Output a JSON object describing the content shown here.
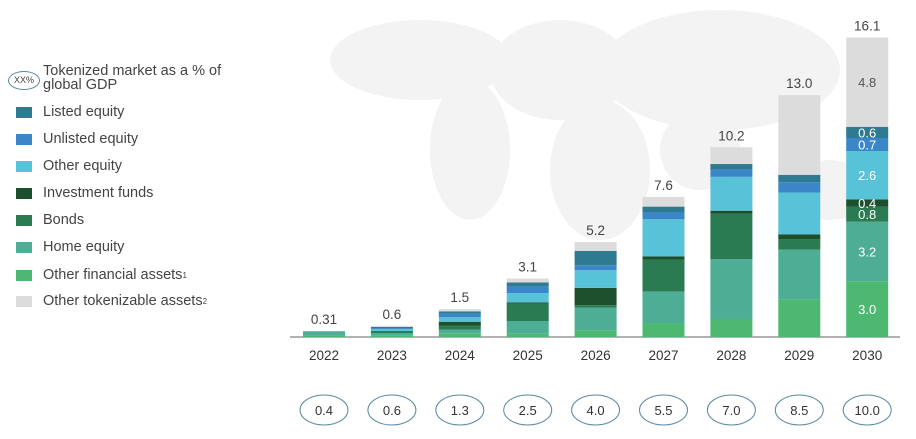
{
  "chart_data": {
    "type": "bar",
    "stacked": true,
    "categories": [
      "2022",
      "2023",
      "2024",
      "2025",
      "2026",
      "2027",
      "2028",
      "2029",
      "2030"
    ],
    "totals": [
      "0.31",
      "0.6",
      "1.5",
      "3.1",
      "5.2",
      "7.6",
      "10.2",
      "13.0",
      "16.1"
    ],
    "series": [
      {
        "name": "Other financial assets",
        "footnote": "1",
        "color": "#4cb870",
        "values": [
          0.06,
          0.1,
          0.2,
          0.18,
          0.36,
          0.75,
          0.94,
          2.0,
          3.0
        ]
      },
      {
        "name": "Home equity",
        "color": "#4dae95",
        "values": [
          0.25,
          0.1,
          0.2,
          0.68,
          1.22,
          1.7,
          3.24,
          2.7,
          3.2
        ]
      },
      {
        "name": "Bonds",
        "color": "#2a7a52",
        "values": [
          0,
          0.08,
          0.2,
          0.93,
          0.13,
          1.7,
          2.45,
          0.55,
          0.8
        ]
      },
      {
        "name": "Investment funds",
        "color": "#1c4f2c",
        "values": [
          0,
          0.04,
          0.22,
          0.07,
          0.93,
          0.18,
          0.16,
          0.27,
          0.4
        ]
      },
      {
        "name": "Other equity",
        "color": "#58c3d8",
        "values": [
          0,
          0.1,
          0.24,
          0.5,
          0.95,
          2.0,
          1.82,
          2.25,
          2.6
        ]
      },
      {
        "name": "Unlisted equity",
        "color": "#3a86c8",
        "values": [
          0,
          0.06,
          0.2,
          0.36,
          0.27,
          0.36,
          0.4,
          0.55,
          0.7
        ]
      },
      {
        "name": "Listed equity",
        "color": "#2e7a91",
        "values": [
          0,
          0.06,
          0.12,
          0.21,
          0.77,
          0.32,
          0.29,
          0.4,
          0.6
        ]
      },
      {
        "name": "Other tokenizable assets",
        "footnote": "2",
        "color": "#dcdcdc",
        "values": [
          0,
          0.06,
          0.12,
          0.21,
          0.47,
          0.52,
          0.9,
          4.28,
          4.8
        ]
      }
    ],
    "segment_labels_2030": [
      "3.0",
      "3.2",
      "0.8",
      "0.4",
      "2.6",
      "0.7",
      "0.6",
      "4.8"
    ],
    "gdp_share_label": "Tokenized market as a % of global GDP",
    "gdp_share_badge": "XX%",
    "gdp_share_pct": [
      "0.4",
      "0.6",
      "1.3",
      "2.5",
      "4.0",
      "5.5",
      "7.0",
      "8.5",
      "10.0"
    ],
    "ylim": [
      0,
      16.1
    ],
    "grid": false,
    "legend_placement": "left"
  }
}
